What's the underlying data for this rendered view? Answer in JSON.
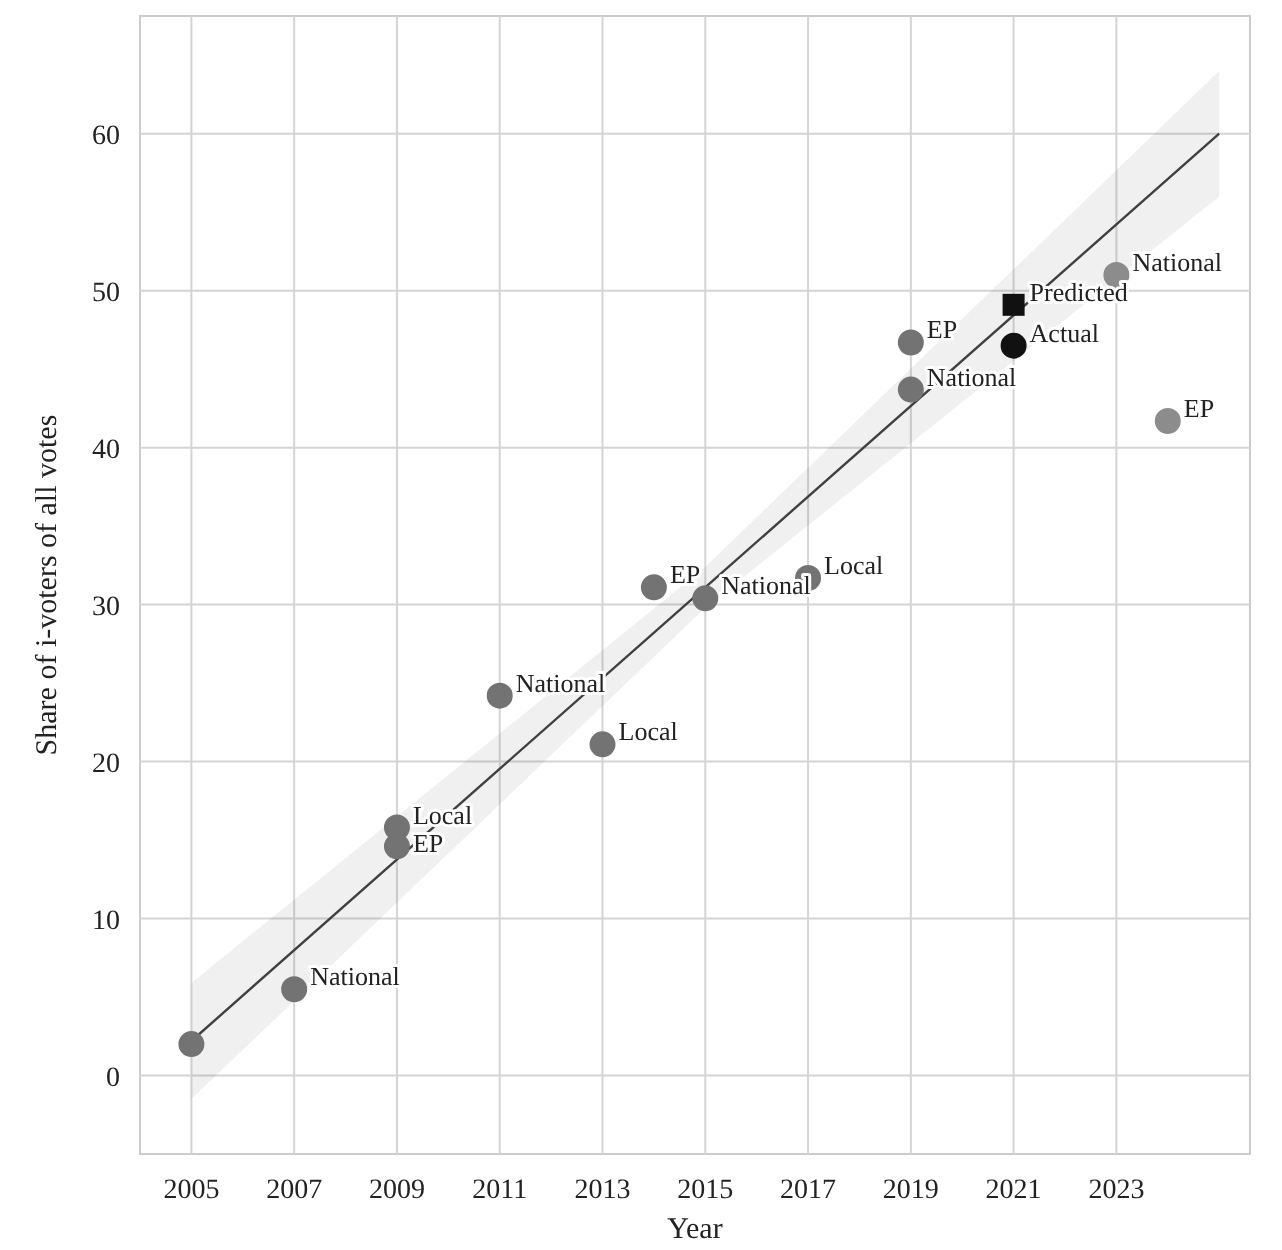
{
  "chart_data": {
    "type": "scatter",
    "xlabel": "Year",
    "ylabel": "Share of i-voters of all votes",
    "xlim": [
      2004,
      2025.6
    ],
    "ylim": [
      -5,
      67.5
    ],
    "xticks": [
      2005,
      2007,
      2009,
      2011,
      2013,
      2015,
      2017,
      2019,
      2021,
      2023
    ],
    "yticks": [
      0,
      10,
      20,
      30,
      40,
      50,
      60
    ],
    "grid": true,
    "series": [
      {
        "type": "line",
        "color": "#404040",
        "marker": "none",
        "line_style": "solid",
        "x": [
          2005,
          2015,
          2025
        ],
        "values": [
          2.2,
          31.1,
          60
        ],
        "lower": [
          -1.5,
          29.8,
          56
        ],
        "upper": [
          5.9,
          32.4,
          64
        ]
      },
      {
        "color": "#737373",
        "marker": "circle",
        "x": [
          2005,
          2007,
          2009,
          2009,
          2011,
          2013,
          2014,
          2015,
          2017,
          2019,
          2019
        ],
        "values": [
          2.0,
          5.5,
          15.8,
          14.6,
          24.2,
          21.1,
          31.1,
          30.4,
          31.7,
          46.7,
          43.7
        ]
      },
      {
        "color": "#8c8c8c",
        "marker": "circle",
        "x": [
          2023,
          2024
        ],
        "values": [
          51.0,
          41.7
        ]
      },
      {
        "color": "#111111",
        "marker": "square",
        "x": [
          2021
        ],
        "values": [
          49.1
        ]
      },
      {
        "color": "#111111",
        "marker": "circle",
        "x": [
          2021
        ],
        "values": [
          46.5
        ]
      }
    ],
    "annotations": [
      {
        "text": "National",
        "x": 2007,
        "y": 5.5
      },
      {
        "text": "Local",
        "x": 2009,
        "y": 15.8
      },
      {
        "text": "EP",
        "x": 2009,
        "y": 14.6
      },
      {
        "text": "National",
        "x": 2011,
        "y": 24.2
      },
      {
        "text": "Local",
        "x": 2013,
        "y": 21.1
      },
      {
        "text": "EP",
        "x": 2014,
        "y": 31.1
      },
      {
        "text": "National",
        "x": 2015,
        "y": 30.4
      },
      {
        "text": "Local",
        "x": 2017,
        "y": 31.7
      },
      {
        "text": "EP",
        "x": 2019,
        "y": 46.7
      },
      {
        "text": "National",
        "x": 2019,
        "y": 43.7
      },
      {
        "text": "Predicted",
        "x": 2021,
        "y": 49.1
      },
      {
        "text": "Actual",
        "x": 2021,
        "y": 46.5
      },
      {
        "text": "National",
        "x": 2023,
        "y": 51.0
      },
      {
        "text": "EP",
        "x": 2024,
        "y": 41.7
      }
    ]
  }
}
